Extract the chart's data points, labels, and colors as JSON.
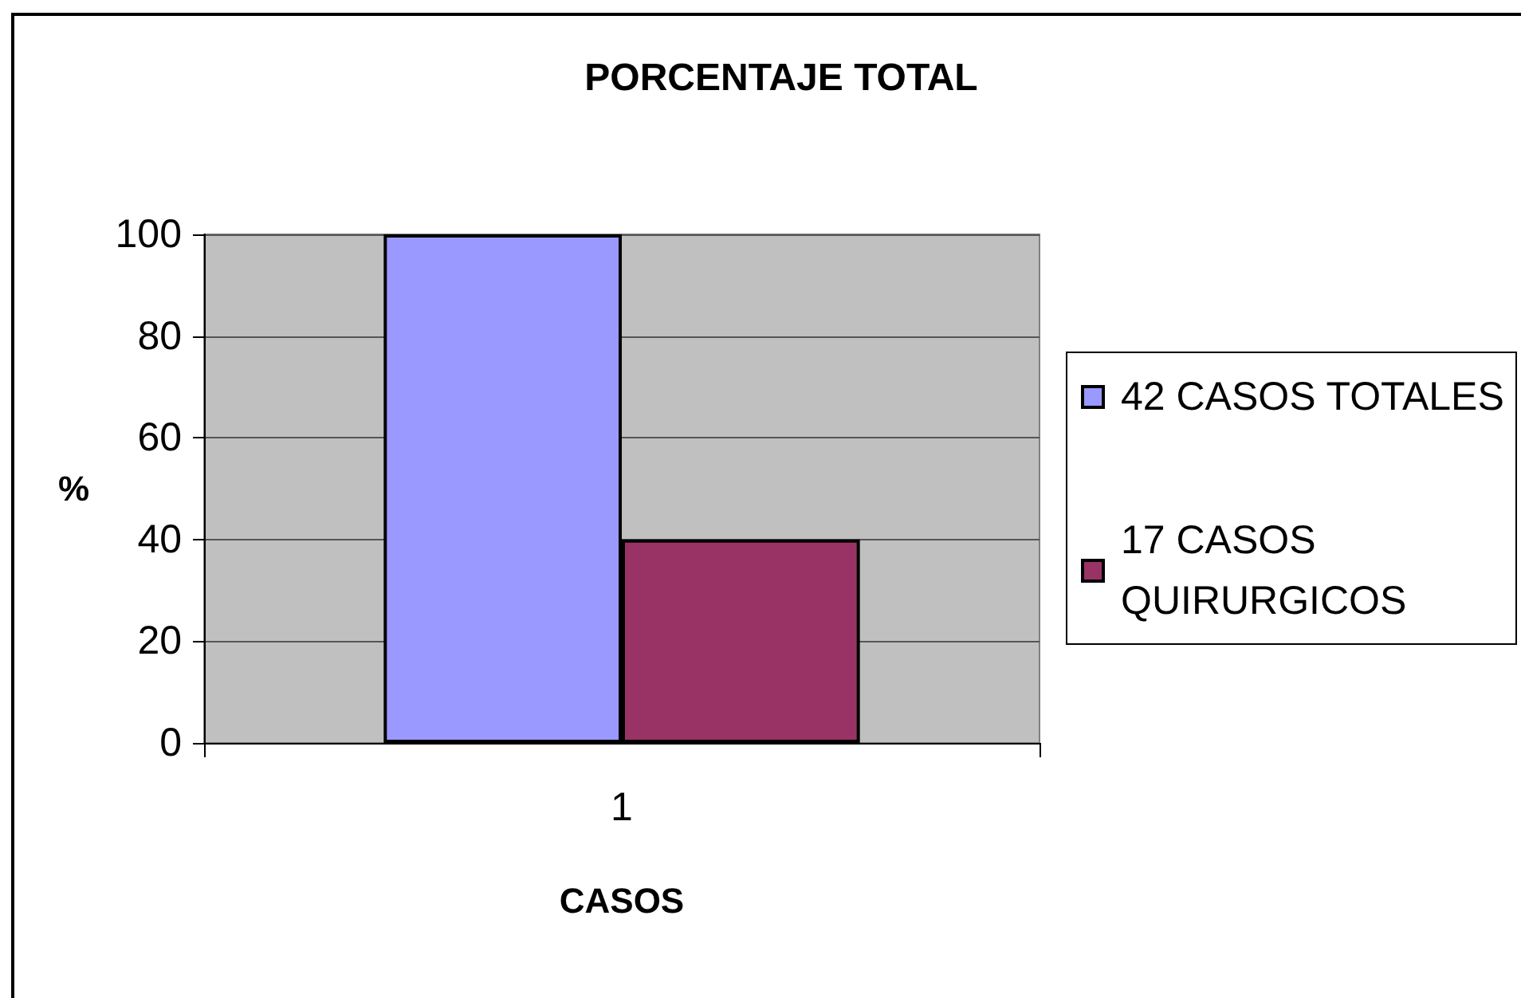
{
  "chart_data": {
    "type": "bar",
    "title": "PORCENTAJE TOTAL",
    "xlabel": "CASOS",
    "ylabel": "%",
    "categories": [
      "1"
    ],
    "series": [
      {
        "name": "42 CASOS TOTALES",
        "color": "#9999ff",
        "values": [
          100
        ]
      },
      {
        "name": "17 CASOS QUIRURGICOS",
        "color": "#993366",
        "values": [
          40
        ]
      }
    ],
    "ylim": [
      0,
      100
    ],
    "yticks": [
      0,
      20,
      40,
      60,
      80,
      100
    ],
    "grid": "y",
    "legend": "right"
  }
}
